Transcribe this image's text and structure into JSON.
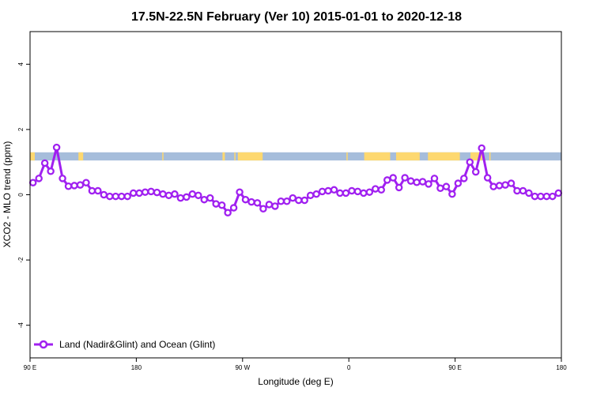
{
  "chart_data": {
    "type": "line",
    "title": "17.5N-22.5N February (Ver 10)   2015-01-01 to 2020-12-18",
    "xlabel": "Longitude (deg E)",
    "ylabel": "XCO2 - MLO trend (ppm)",
    "xlim": [
      90,
      540
    ],
    "ylim": [
      -5,
      5
    ],
    "x_ticks": [
      {
        "value": 90,
        "label": "90 E"
      },
      {
        "value": 180,
        "label": "180"
      },
      {
        "value": 270,
        "label": "90 W"
      },
      {
        "value": 360,
        "label": "0"
      },
      {
        "value": 450,
        "label": "90 E"
      },
      {
        "value": 540,
        "label": "180"
      }
    ],
    "y_ticks": [
      {
        "value": -4,
        "label": "-4"
      },
      {
        "value": -2,
        "label": "-2"
      },
      {
        "value": 0,
        "label": "0"
      },
      {
        "value": 2,
        "label": "2"
      },
      {
        "value": 4,
        "label": "4"
      }
    ],
    "grid": false,
    "legend": {
      "position": "bottom-left"
    },
    "surface_band": {
      "y_range": [
        1.05,
        1.3
      ],
      "ocean_color": "#a6bddb",
      "land_color": "#fdd870",
      "land_segments": [
        [
          90,
          94
        ],
        [
          131,
          135
        ],
        [
          202,
          203
        ],
        [
          253,
          255
        ],
        [
          263,
          264
        ],
        [
          266,
          287
        ],
        [
          358,
          359
        ],
        [
          373,
          395
        ],
        [
          400,
          420
        ],
        [
          427,
          454
        ],
        [
          463,
          473
        ],
        [
          479,
          480
        ]
      ]
    },
    "series": [
      {
        "name": "Land (Nadir&Glint) and Ocean (Glint)",
        "color": "#a020f0",
        "x": [
          92.5,
          97.5,
          102.5,
          107.5,
          112.5,
          117.5,
          122.5,
          127.5,
          132.5,
          137.5,
          142.5,
          147.5,
          152.5,
          157.5,
          162.5,
          167.5,
          172.5,
          177.5,
          182.5,
          187.5,
          192.5,
          197.5,
          202.5,
          207.5,
          212.5,
          217.5,
          222.5,
          227.5,
          232.5,
          237.5,
          242.5,
          247.5,
          252.5,
          257.5,
          262.5,
          267.5,
          272.5,
          277.5,
          282.5,
          287.5,
          292.5,
          297.5,
          302.5,
          307.5,
          312.5,
          317.5,
          322.5,
          327.5,
          332.5,
          337.5,
          342.5,
          347.5,
          352.5,
          357.5,
          362.5,
          367.5,
          372.5,
          377.5,
          382.5,
          387.5,
          392.5,
          397.5,
          402.5,
          407.5,
          412.5,
          417.5,
          422.5,
          427.5,
          432.5,
          437.5,
          442.5,
          447.5,
          452.5,
          457.5,
          462.5,
          467.5,
          472.5,
          477.5,
          482.5,
          487.5,
          492.5,
          497.5,
          502.5,
          507.5,
          512.5,
          517.5,
          522.5,
          527.5,
          532.5,
          537.5
        ],
        "values": [
          0.37,
          0.5,
          0.97,
          0.72,
          1.45,
          0.5,
          0.26,
          0.28,
          0.3,
          0.37,
          0.12,
          0.12,
          0.0,
          -0.05,
          -0.05,
          -0.05,
          -0.05,
          0.05,
          0.05,
          0.08,
          0.1,
          0.07,
          0.02,
          -0.02,
          0.02,
          -0.1,
          -0.07,
          0.02,
          -0.02,
          -0.15,
          -0.1,
          -0.28,
          -0.32,
          -0.55,
          -0.4,
          0.08,
          -0.15,
          -0.22,
          -0.25,
          -0.43,
          -0.3,
          -0.35,
          -0.2,
          -0.2,
          -0.1,
          -0.17,
          -0.17,
          -0.02,
          0.02,
          0.1,
          0.12,
          0.15,
          0.05,
          0.05,
          0.12,
          0.1,
          0.05,
          0.08,
          0.18,
          0.15,
          0.45,
          0.52,
          0.22,
          0.52,
          0.42,
          0.38,
          0.4,
          0.33,
          0.5,
          0.2,
          0.25,
          0.02,
          0.35,
          0.5,
          1.0,
          0.7,
          1.43,
          0.52,
          0.25,
          0.28,
          0.3,
          0.35,
          0.12,
          0.12,
          0.05,
          -0.05,
          -0.05,
          -0.05,
          -0.05,
          0.05
        ]
      }
    ]
  }
}
